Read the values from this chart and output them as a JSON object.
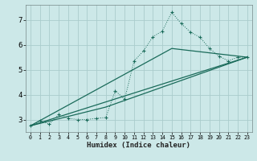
{
  "xlabel": "Humidex (Indice chaleur)",
  "bg_color": "#cce8e8",
  "grid_color": "#aacccc",
  "line_color": "#1a6b5a",
  "xlim": [
    -0.5,
    23.5
  ],
  "ylim": [
    2.5,
    7.6
  ],
  "yticks": [
    3,
    4,
    5,
    6,
    7
  ],
  "xticks": [
    0,
    1,
    2,
    3,
    4,
    5,
    6,
    7,
    8,
    9,
    10,
    11,
    12,
    13,
    14,
    15,
    16,
    17,
    18,
    19,
    20,
    21,
    22,
    23
  ],
  "series1_x": [
    0,
    1,
    2,
    3,
    4,
    5,
    6,
    7,
    8,
    9,
    10,
    11,
    12,
    13,
    14,
    15,
    16,
    17,
    18,
    19,
    20,
    21,
    22,
    23
  ],
  "series1_y": [
    2.75,
    2.95,
    2.82,
    3.2,
    3.05,
    3.0,
    3.0,
    3.05,
    3.08,
    4.15,
    3.82,
    5.35,
    5.75,
    6.32,
    6.55,
    7.3,
    6.85,
    6.5,
    6.3,
    5.85,
    5.55,
    5.35,
    5.5,
    5.5
  ],
  "series2_x": [
    0,
    23
  ],
  "series2_y": [
    2.75,
    5.5
  ],
  "series3_x": [
    0,
    8,
    23
  ],
  "series3_y": [
    2.75,
    3.5,
    5.5
  ],
  "series4_x": [
    0,
    15,
    23
  ],
  "series4_y": [
    2.75,
    5.85,
    5.5
  ]
}
